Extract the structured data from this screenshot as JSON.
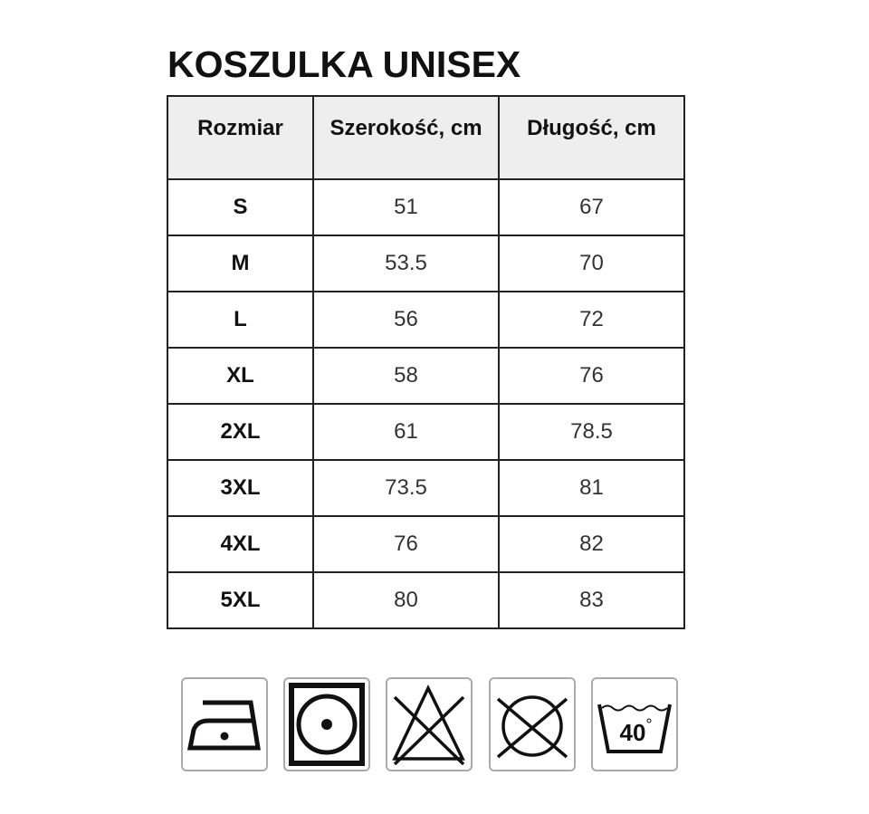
{
  "title": "KOSZULKA UNISEX",
  "headers": [
    "Rozmiar",
    "Szerokość, cm",
    "Długość, cm"
  ],
  "rows": [
    {
      "size": "S",
      "width": "51",
      "length": "67"
    },
    {
      "size": "M",
      "width": "53.5",
      "length": "70"
    },
    {
      "size": "L",
      "width": "56",
      "length": "72"
    },
    {
      "size": "XL",
      "width": "58",
      "length": "76"
    },
    {
      "size": "2XL",
      "width": "61",
      "length": "78.5"
    },
    {
      "size": "3XL",
      "width": "73.5",
      "length": "81"
    },
    {
      "size": "4XL",
      "width": "76",
      "length": "82"
    },
    {
      "size": "5XL",
      "width": "80",
      "length": "83"
    }
  ],
  "care_icons": [
    "iron-low-heat-icon",
    "tumble-dry-icon",
    "do-not-bleach-icon",
    "do-not-dry-clean-icon",
    "wash-40-icon"
  ],
  "wash_temp": "40"
}
